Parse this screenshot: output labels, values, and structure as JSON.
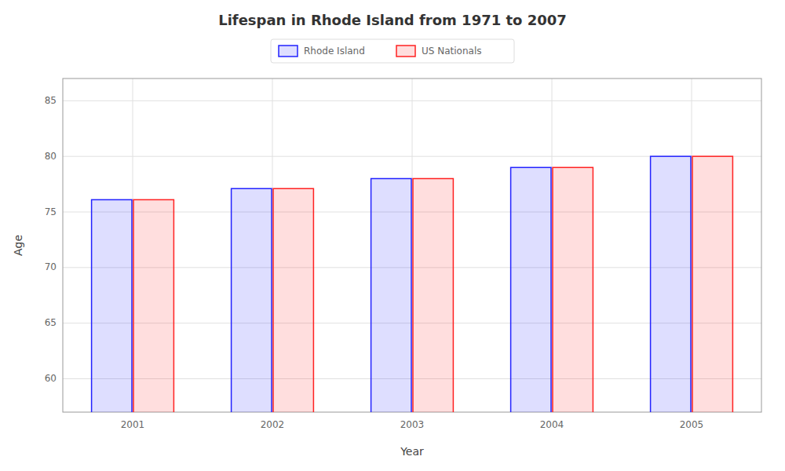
{
  "chart_data": {
    "type": "bar",
    "title": "Lifespan in Rhode Island from 1971 to 2007",
    "x_label": "Year",
    "y_label": "Age",
    "categories": [
      "2001",
      "2002",
      "2003",
      "2004",
      "2005"
    ],
    "series": [
      {
        "name": "Rhode Island",
        "color": "#2222ff",
        "values": [
          76.1,
          77.1,
          78.0,
          79.0,
          80.0
        ]
      },
      {
        "name": "US Nationals",
        "color": "#ff2222",
        "values": [
          76.1,
          77.1,
          78.0,
          79.0,
          80.0
        ]
      }
    ],
    "ylim": [
      57,
      87
    ],
    "yticks": [
      60,
      65,
      70,
      75,
      80,
      85
    ],
    "grid": true,
    "legend": "upper center"
  }
}
